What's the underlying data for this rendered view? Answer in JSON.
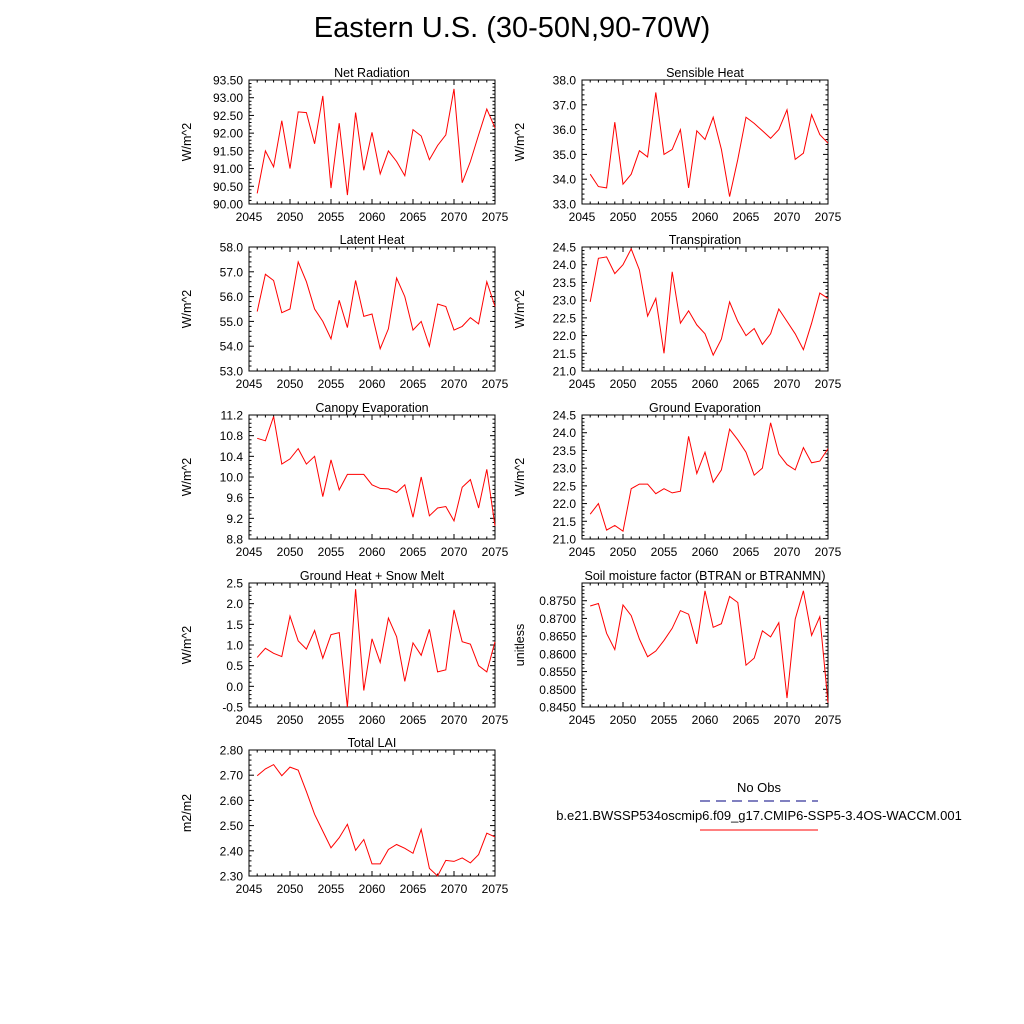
{
  "page": {
    "title": "Eastern U.S. (30-50N,90-70W)"
  },
  "colors": {
    "series": "#ff0000",
    "obs": "#000080",
    "frame": "#000000"
  },
  "legend": {
    "obs_label": "No Obs",
    "case_label": "b.e21.BWSSP534oscmip6.f09_g17.CMIP6-SSP5-3.4OS-WACCM.001"
  },
  "chart_data": [
    {
      "type": "line",
      "title": "Net Radiation",
      "ylabel": "W/m^2",
      "xlim": [
        2045,
        2075
      ],
      "ylim": [
        90.0,
        93.5
      ],
      "xticks": [
        2045,
        2050,
        2055,
        2060,
        2065,
        2070,
        2075
      ],
      "xtick_labels": [
        "2045",
        "2050",
        "2055",
        "2060",
        "2065",
        "2070",
        "2075"
      ],
      "yticks": [
        90.0,
        90.5,
        91.0,
        91.5,
        92.0,
        92.5,
        93.0,
        93.5
      ],
      "ytick_labels": [
        "90.00",
        "90.50",
        "91.00",
        "91.50",
        "92.00",
        "92.50",
        "93.00",
        "93.50"
      ],
      "x": [
        2046,
        2047,
        2048,
        2049,
        2050,
        2051,
        2052,
        2053,
        2054,
        2055,
        2056,
        2057,
        2058,
        2059,
        2060,
        2061,
        2062,
        2063,
        2064,
        2065,
        2066,
        2067,
        2068,
        2069,
        2070,
        2071,
        2072,
        2073,
        2074,
        2075
      ],
      "y": [
        90.3,
        91.5,
        91.05,
        92.35,
        91.0,
        92.6,
        92.58,
        91.7,
        93.05,
        90.45,
        92.28,
        90.25,
        92.58,
        90.95,
        92.02,
        90.85,
        91.5,
        91.2,
        90.8,
        92.1,
        91.92,
        91.25,
        91.65,
        91.95,
        93.25,
        90.6,
        91.2,
        91.95,
        92.68,
        92.15
      ]
    },
    {
      "type": "line",
      "title": "Sensible Heat",
      "ylabel": "W/m^2",
      "xlim": [
        2045,
        2075
      ],
      "ylim": [
        33.0,
        38.0
      ],
      "xticks": [
        2045,
        2050,
        2055,
        2060,
        2065,
        2070,
        2075
      ],
      "xtick_labels": [
        "2045",
        "2050",
        "2055",
        "2060",
        "2065",
        "2070",
        "2075"
      ],
      "yticks": [
        33.0,
        34.0,
        35.0,
        36.0,
        37.0,
        38.0
      ],
      "ytick_labels": [
        "33.0",
        "34.0",
        "35.0",
        "36.0",
        "37.0",
        "38.0"
      ],
      "x": [
        2046,
        2047,
        2048,
        2049,
        2050,
        2051,
        2052,
        2053,
        2054,
        2055,
        2056,
        2057,
        2058,
        2059,
        2060,
        2061,
        2062,
        2063,
        2064,
        2065,
        2066,
        2067,
        2068,
        2069,
        2070,
        2071,
        2072,
        2073,
        2074,
        2075
      ],
      "y": [
        34.2,
        33.7,
        33.65,
        36.3,
        33.8,
        34.2,
        35.15,
        34.9,
        37.5,
        35.0,
        35.2,
        36.0,
        33.65,
        35.95,
        35.6,
        36.5,
        35.2,
        33.3,
        34.8,
        36.5,
        36.25,
        35.95,
        35.65,
        36.0,
        36.8,
        34.8,
        35.05,
        36.6,
        35.8,
        35.45
      ]
    },
    {
      "type": "line",
      "title": "Latent Heat",
      "ylabel": "W/m^2",
      "xlim": [
        2045,
        2075
      ],
      "ylim": [
        53.0,
        58.0
      ],
      "xticks": [
        2045,
        2050,
        2055,
        2060,
        2065,
        2070,
        2075
      ],
      "xtick_labels": [
        "2045",
        "2050",
        "2055",
        "2060",
        "2065",
        "2070",
        "2075"
      ],
      "yticks": [
        53.0,
        54.0,
        55.0,
        56.0,
        57.0,
        58.0
      ],
      "ytick_labels": [
        "53.0",
        "54.0",
        "55.0",
        "56.0",
        "57.0",
        "58.0"
      ],
      "x": [
        2046,
        2047,
        2048,
        2049,
        2050,
        2051,
        2052,
        2053,
        2054,
        2055,
        2056,
        2057,
        2058,
        2059,
        2060,
        2061,
        2062,
        2063,
        2064,
        2065,
        2066,
        2067,
        2068,
        2069,
        2070,
        2071,
        2072,
        2073,
        2074,
        2075
      ],
      "y": [
        55.4,
        56.9,
        56.65,
        55.35,
        55.5,
        57.4,
        56.6,
        55.5,
        55.0,
        54.3,
        55.85,
        54.75,
        56.65,
        55.2,
        55.3,
        53.9,
        54.7,
        56.75,
        56.0,
        54.65,
        55.0,
        54.0,
        55.7,
        55.6,
        54.65,
        54.8,
        55.15,
        54.9,
        56.6,
        55.6
      ]
    },
    {
      "type": "line",
      "title": "Transpiration",
      "ylabel": "W/m^2",
      "xlim": [
        2045,
        2075
      ],
      "ylim": [
        21.0,
        24.5
      ],
      "xticks": [
        2045,
        2050,
        2055,
        2060,
        2065,
        2070,
        2075
      ],
      "xtick_labels": [
        "2045",
        "2050",
        "2055",
        "2060",
        "2065",
        "2070",
        "2075"
      ],
      "yticks": [
        21.0,
        21.5,
        22.0,
        22.5,
        23.0,
        23.5,
        24.0,
        24.5
      ],
      "ytick_labels": [
        "21.0",
        "21.5",
        "22.0",
        "22.5",
        "23.0",
        "23.5",
        "24.0",
        "24.5"
      ],
      "x": [
        2046,
        2047,
        2048,
        2049,
        2050,
        2051,
        2052,
        2053,
        2054,
        2055,
        2056,
        2057,
        2058,
        2059,
        2060,
        2061,
        2062,
        2063,
        2064,
        2065,
        2066,
        2067,
        2068,
        2069,
        2070,
        2071,
        2072,
        2073,
        2074,
        2075
      ],
      "y": [
        22.95,
        24.18,
        24.22,
        23.75,
        24.0,
        24.45,
        23.85,
        22.55,
        23.05,
        21.5,
        23.8,
        22.35,
        22.7,
        22.3,
        22.05,
        21.45,
        21.9,
        22.95,
        22.4,
        22.0,
        22.2,
        21.75,
        22.05,
        22.75,
        22.4,
        22.05,
        21.6,
        22.35,
        23.2,
        23.05
      ]
    },
    {
      "type": "line",
      "title": "Canopy Evaporation",
      "ylabel": "W/m^2",
      "xlim": [
        2045,
        2075
      ],
      "ylim": [
        8.8,
        11.2
      ],
      "xticks": [
        2045,
        2050,
        2055,
        2060,
        2065,
        2070,
        2075
      ],
      "xtick_labels": [
        "2045",
        "2050",
        "2055",
        "2060",
        "2065",
        "2070",
        "2075"
      ],
      "yticks": [
        8.8,
        9.2,
        9.6,
        10.0,
        10.4,
        10.8,
        11.2
      ],
      "ytick_labels": [
        "8.8",
        "9.2",
        "9.6",
        "10.0",
        "10.4",
        "10.8",
        "11.2"
      ],
      "x": [
        2046,
        2047,
        2048,
        2049,
        2050,
        2051,
        2052,
        2053,
        2054,
        2055,
        2056,
        2057,
        2058,
        2059,
        2060,
        2061,
        2062,
        2063,
        2064,
        2065,
        2066,
        2067,
        2068,
        2069,
        2070,
        2071,
        2072,
        2073,
        2074,
        2075
      ],
      "y": [
        10.75,
        10.7,
        11.17,
        10.25,
        10.35,
        10.55,
        10.25,
        10.4,
        9.62,
        10.33,
        9.75,
        10.05,
        10.05,
        10.05,
        9.85,
        9.78,
        9.77,
        9.7,
        9.85,
        9.22,
        10.0,
        9.25,
        9.4,
        9.43,
        9.15,
        9.8,
        9.95,
        9.4,
        10.15,
        9.05
      ]
    },
    {
      "type": "line",
      "title": "Ground Evaporation",
      "ylabel": "W/m^2",
      "xlim": [
        2045,
        2075
      ],
      "ylim": [
        21.0,
        24.5
      ],
      "xticks": [
        2045,
        2050,
        2055,
        2060,
        2065,
        2070,
        2075
      ],
      "xtick_labels": [
        "2045",
        "2050",
        "2055",
        "2060",
        "2065",
        "2070",
        "2075"
      ],
      "yticks": [
        21.0,
        21.5,
        22.0,
        22.5,
        23.0,
        23.5,
        24.0,
        24.5
      ],
      "ytick_labels": [
        "21.0",
        "21.5",
        "22.0",
        "22.5",
        "23.0",
        "23.5",
        "24.0",
        "24.5"
      ],
      "x": [
        2046,
        2047,
        2048,
        2049,
        2050,
        2051,
        2052,
        2053,
        2054,
        2055,
        2056,
        2057,
        2058,
        2059,
        2060,
        2061,
        2062,
        2063,
        2064,
        2065,
        2066,
        2067,
        2068,
        2069,
        2070,
        2071,
        2072,
        2073,
        2074,
        2075
      ],
      "y": [
        21.7,
        22.0,
        21.25,
        21.38,
        21.22,
        22.42,
        22.55,
        22.55,
        22.28,
        22.42,
        22.3,
        22.35,
        23.9,
        22.85,
        23.45,
        22.6,
        22.95,
        24.1,
        23.8,
        23.45,
        22.8,
        23.0,
        24.28,
        23.4,
        23.1,
        22.95,
        23.58,
        23.15,
        23.2,
        23.55
      ]
    },
    {
      "type": "line",
      "title": "Ground Heat + Snow Melt",
      "ylabel": "W/m^2",
      "xlim": [
        2045,
        2075
      ],
      "ylim": [
        -0.5,
        2.5
      ],
      "xticks": [
        2045,
        2050,
        2055,
        2060,
        2065,
        2070,
        2075
      ],
      "xtick_labels": [
        "2045",
        "2050",
        "2055",
        "2060",
        "2065",
        "2070",
        "2075"
      ],
      "yticks": [
        -0.5,
        0.0,
        0.5,
        1.0,
        1.5,
        2.0,
        2.5
      ],
      "ytick_labels": [
        "-0.5",
        "0.0",
        "0.5",
        "1.0",
        "1.5",
        "2.0",
        "2.5"
      ],
      "x": [
        2046,
        2047,
        2048,
        2049,
        2050,
        2051,
        2052,
        2053,
        2054,
        2055,
        2056,
        2057,
        2058,
        2059,
        2060,
        2061,
        2062,
        2063,
        2064,
        2065,
        2066,
        2067,
        2068,
        2069,
        2070,
        2071,
        2072,
        2073,
        2074,
        2075
      ],
      "y": [
        0.7,
        0.92,
        0.8,
        0.72,
        1.7,
        1.1,
        0.9,
        1.35,
        0.68,
        1.25,
        1.3,
        -0.5,
        2.35,
        -0.1,
        1.15,
        0.58,
        1.65,
        1.2,
        0.12,
        1.05,
        0.75,
        1.38,
        0.35,
        0.4,
        1.85,
        1.08,
        1.02,
        0.5,
        0.35,
        1.08
      ]
    },
    {
      "type": "line",
      "title": "Soil moisture factor (BTRAN or BTRANMN)",
      "ylabel": "unitless",
      "xlim": [
        2045,
        2075
      ],
      "ylim": [
        0.845,
        0.88
      ],
      "xticks": [
        2045,
        2050,
        2055,
        2060,
        2065,
        2070,
        2075
      ],
      "xtick_labels": [
        "2045",
        "2050",
        "2055",
        "2060",
        "2065",
        "2070",
        "2075"
      ],
      "yticks": [
        0.845,
        0.85,
        0.855,
        0.86,
        0.865,
        0.87,
        0.875
      ],
      "ytick_labels": [
        "0.8450",
        "0.8500",
        "0.8550",
        "0.8600",
        "0.8650",
        "0.8700",
        "0.8750"
      ],
      "x": [
        2046,
        2047,
        2048,
        2049,
        2050,
        2051,
        2052,
        2053,
        2054,
        2055,
        2056,
        2057,
        2058,
        2059,
        2060,
        2061,
        2062,
        2063,
        2064,
        2065,
        2066,
        2067,
        2068,
        2069,
        2070,
        2071,
        2072,
        2073,
        2074,
        2075
      ],
      "y": [
        0.8735,
        0.8742,
        0.8658,
        0.8612,
        0.8738,
        0.8708,
        0.8642,
        0.8592,
        0.8608,
        0.8638,
        0.8672,
        0.8722,
        0.8712,
        0.8628,
        0.8778,
        0.8675,
        0.8685,
        0.8762,
        0.8745,
        0.8568,
        0.8588,
        0.8665,
        0.8648,
        0.8688,
        0.8475,
        0.8698,
        0.8778,
        0.8652,
        0.8705,
        0.8462
      ]
    },
    {
      "type": "line",
      "title": "Total LAI",
      "ylabel": "m2/m2",
      "xlim": [
        2045,
        2075
      ],
      "ylim": [
        2.3,
        2.8
      ],
      "xticks": [
        2045,
        2050,
        2055,
        2060,
        2065,
        2070,
        2075
      ],
      "xtick_labels": [
        "2045",
        "2050",
        "2055",
        "2060",
        "2065",
        "2070",
        "2075"
      ],
      "yticks": [
        2.3,
        2.4,
        2.5,
        2.6,
        2.7,
        2.8
      ],
      "ytick_labels": [
        "2.30",
        "2.40",
        "2.50",
        "2.60",
        "2.70",
        "2.80"
      ],
      "x": [
        2046,
        2047,
        2048,
        2049,
        2050,
        2051,
        2052,
        2053,
        2054,
        2055,
        2056,
        2057,
        2058,
        2059,
        2060,
        2061,
        2062,
        2063,
        2064,
        2065,
        2066,
        2067,
        2068,
        2069,
        2070,
        2071,
        2072,
        2073,
        2074,
        2075
      ],
      "y": [
        2.698,
        2.725,
        2.742,
        2.698,
        2.732,
        2.72,
        2.635,
        2.545,
        2.478,
        2.412,
        2.452,
        2.505,
        2.402,
        2.445,
        2.348,
        2.348,
        2.405,
        2.425,
        2.41,
        2.39,
        2.485,
        2.33,
        2.3,
        2.362,
        2.358,
        2.372,
        2.352,
        2.385,
        2.47,
        2.455
      ]
    }
  ]
}
